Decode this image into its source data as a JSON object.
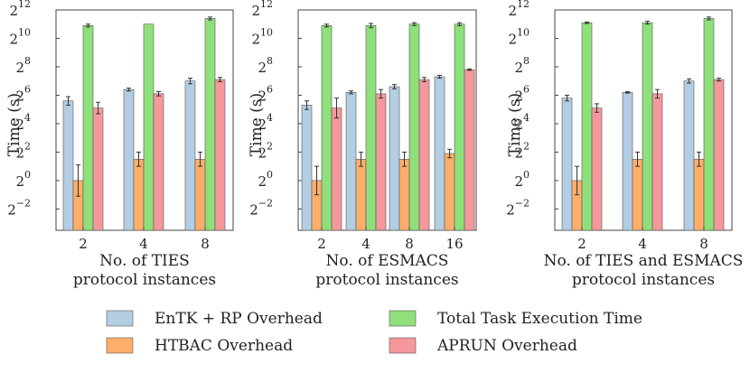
{
  "chart_data": [
    {
      "type": "bar",
      "yscale": "log2",
      "ylim_exp": [
        -3.5,
        12
      ],
      "ylabel": "Time (s)",
      "xlabel": [
        "No. of TIES",
        "protocol instances"
      ],
      "categories": [
        "2",
        "4",
        "8"
      ],
      "series": [
        {
          "key": "entk",
          "values_log2": [
            5.6,
            6.4,
            7.0
          ],
          "err_log2": [
            0.3,
            0.1,
            0.2
          ]
        },
        {
          "key": "htbac",
          "values_log2": [
            0.0,
            1.5,
            1.5
          ],
          "err_log2": [
            1.1,
            0.5,
            0.5
          ]
        },
        {
          "key": "task",
          "values_log2": [
            10.9,
            11.0,
            11.4
          ],
          "err_log2": [
            0.1,
            0.0,
            0.1
          ]
        },
        {
          "key": "aprun",
          "values_log2": [
            5.1,
            6.1,
            7.1
          ],
          "err_log2": [
            0.4,
            0.15,
            0.15
          ]
        }
      ]
    },
    {
      "type": "bar",
      "yscale": "log2",
      "ylim_exp": [
        -3.5,
        12
      ],
      "ylabel": "Time (s)",
      "xlabel": [
        "No. of ESMACS",
        "protocol instances"
      ],
      "categories": [
        "2",
        "4",
        "8",
        "16"
      ],
      "series": [
        {
          "key": "entk",
          "values_log2": [
            5.3,
            6.2,
            6.6,
            7.3
          ],
          "err_log2": [
            0.3,
            0.1,
            0.15,
            0.1
          ]
        },
        {
          "key": "htbac",
          "values_log2": [
            0.0,
            1.5,
            1.5,
            1.9
          ],
          "err_log2": [
            1.0,
            0.5,
            0.5,
            0.3
          ]
        },
        {
          "key": "task",
          "values_log2": [
            10.9,
            10.9,
            11.0,
            11.0
          ],
          "err_log2": [
            0.1,
            0.15,
            0.1,
            0.1
          ]
        },
        {
          "key": "aprun",
          "values_log2": [
            5.1,
            6.1,
            7.1,
            7.8
          ],
          "err_log2": [
            0.7,
            0.3,
            0.15,
            0.05
          ]
        }
      ]
    },
    {
      "type": "bar",
      "yscale": "log2",
      "ylim_exp": [
        -3.5,
        12
      ],
      "ylabel": "Time (s)",
      "xlabel": [
        "No. of TIES and ESMACS",
        "protocol instances"
      ],
      "categories": [
        "2",
        "4",
        "8"
      ],
      "series": [
        {
          "key": "entk",
          "values_log2": [
            5.8,
            6.2,
            7.0
          ],
          "err_log2": [
            0.2,
            0.05,
            0.15
          ]
        },
        {
          "key": "htbac",
          "values_log2": [
            0.0,
            1.5,
            1.5
          ],
          "err_log2": [
            1.0,
            0.5,
            0.5
          ]
        },
        {
          "key": "task",
          "values_log2": [
            11.1,
            11.1,
            11.4
          ],
          "err_log2": [
            0.05,
            0.1,
            0.1
          ]
        },
        {
          "key": "aprun",
          "values_log2": [
            5.1,
            6.1,
            7.1
          ],
          "err_log2": [
            0.3,
            0.3,
            0.1
          ]
        }
      ]
    }
  ],
  "yticks_exp": [
    "12",
    "10",
    "8",
    "6",
    "4",
    "2",
    "0",
    "−2"
  ],
  "ytick_base": "2",
  "legend": [
    {
      "key": "entk",
      "label": "EnTK + RP Overhead",
      "color": "#b3cde3"
    },
    {
      "key": "task",
      "label": "Total Task Execution Time",
      "color": "#8fe07a"
    },
    {
      "key": "htbac",
      "label": "HTBAC Overhead",
      "color": "#fdae6b"
    },
    {
      "key": "aprun",
      "label": "APRUN Overhead",
      "color": "#f4989c"
    }
  ]
}
